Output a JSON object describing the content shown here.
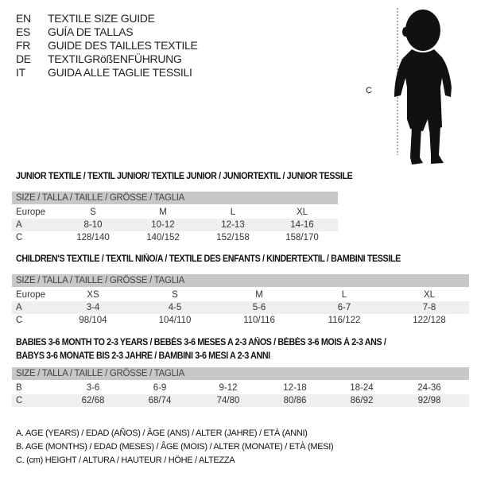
{
  "header": [
    {
      "code": "EN",
      "text": "TEXTILE SIZE GUIDE"
    },
    {
      "code": "ES",
      "text": "GUÍA DE TALLAS"
    },
    {
      "code": "FR",
      "text": "GUIDE DES TAILLES TEXTILE"
    },
    {
      "code": "DE",
      "text": "TEXTILGRößENFÜHRUNG"
    },
    {
      "code": "IT",
      "text": "GUIDA ALLE TAGLIE TESSILI"
    }
  ],
  "figure": {
    "label": "C"
  },
  "junior": {
    "title": "JUNIOR TEXTILE / TEXTIL JUNIOR/ TEXTILE JUNIOR / JUNIORTEXTIL / JUNIOR TESSILE",
    "header": "SIZE / TALLA / TAILLE / GRÖSSE / TAGLIA",
    "rows": [
      {
        "label": "Europe",
        "values": [
          "S",
          "M",
          "L",
          "XL"
        ]
      },
      {
        "label": "A",
        "values": [
          "8-10",
          "10-12",
          "12-13",
          "14-16"
        ]
      },
      {
        "label": "C",
        "values": [
          "128/140",
          "140/152",
          "152/158",
          "158/170"
        ]
      }
    ]
  },
  "children": {
    "title": "CHILDREN'S TEXTILE / TEXTIL NIÑO/A / TEXTILE DES ENFANTS / KINDERTEXTIL / BAMBINI TESSILE",
    "header": "SIZE / TALLA / TAILLE / GRÖSSE / TAGLIA",
    "rows": [
      {
        "label": "Europe",
        "values": [
          "XS",
          "S",
          "M",
          "L",
          "XL"
        ]
      },
      {
        "label": "A",
        "values": [
          "3-4",
          "4-5",
          "5-6",
          "6-7",
          "7-8"
        ]
      },
      {
        "label": "C",
        "values": [
          "98/104",
          "104/110",
          "110/116",
          "116/122",
          "122/128"
        ]
      }
    ]
  },
  "babies": {
    "title_line1": "BABIES 3-6 MONTH TO 2-3 YEARS / BEBÉS 3-6 MESES A 2-3 AÑOS / BÉBÉS 3-6 MOIS À 2-3 ANS /",
    "title_line2": "BABYS 3-6 MONATE BIS 2-3 JAHRE / BAMBINI 3-6 MESI A 2-3 ANNI",
    "header": "SIZE / TALLA / TAILLE / GRÖSSE / TAGLIA",
    "rows": [
      {
        "label": "B",
        "values": [
          "3-6",
          "6-9",
          "9-12",
          "12-18",
          "18-24",
          "24-36"
        ]
      },
      {
        "label": "C",
        "values": [
          "62/68",
          "68/74",
          "74/80",
          "80/86",
          "86/92",
          "92/98"
        ]
      }
    ]
  },
  "legend": [
    "A. AGE (YEARS) / EDAD (AÑOS) / ÂGE (ANS) / ALTER (JAHRE) / ETÀ (ANNI)",
    "B. AGE (MONTHS) / EDAD (MESES) / ÂGE (MOIS) / ALTER (MONATE) / ETÀ (MESI)",
    "C. (cm) HEIGHT / ALTURA / HAUTEUR / HÖHE / ALTEZZA"
  ]
}
